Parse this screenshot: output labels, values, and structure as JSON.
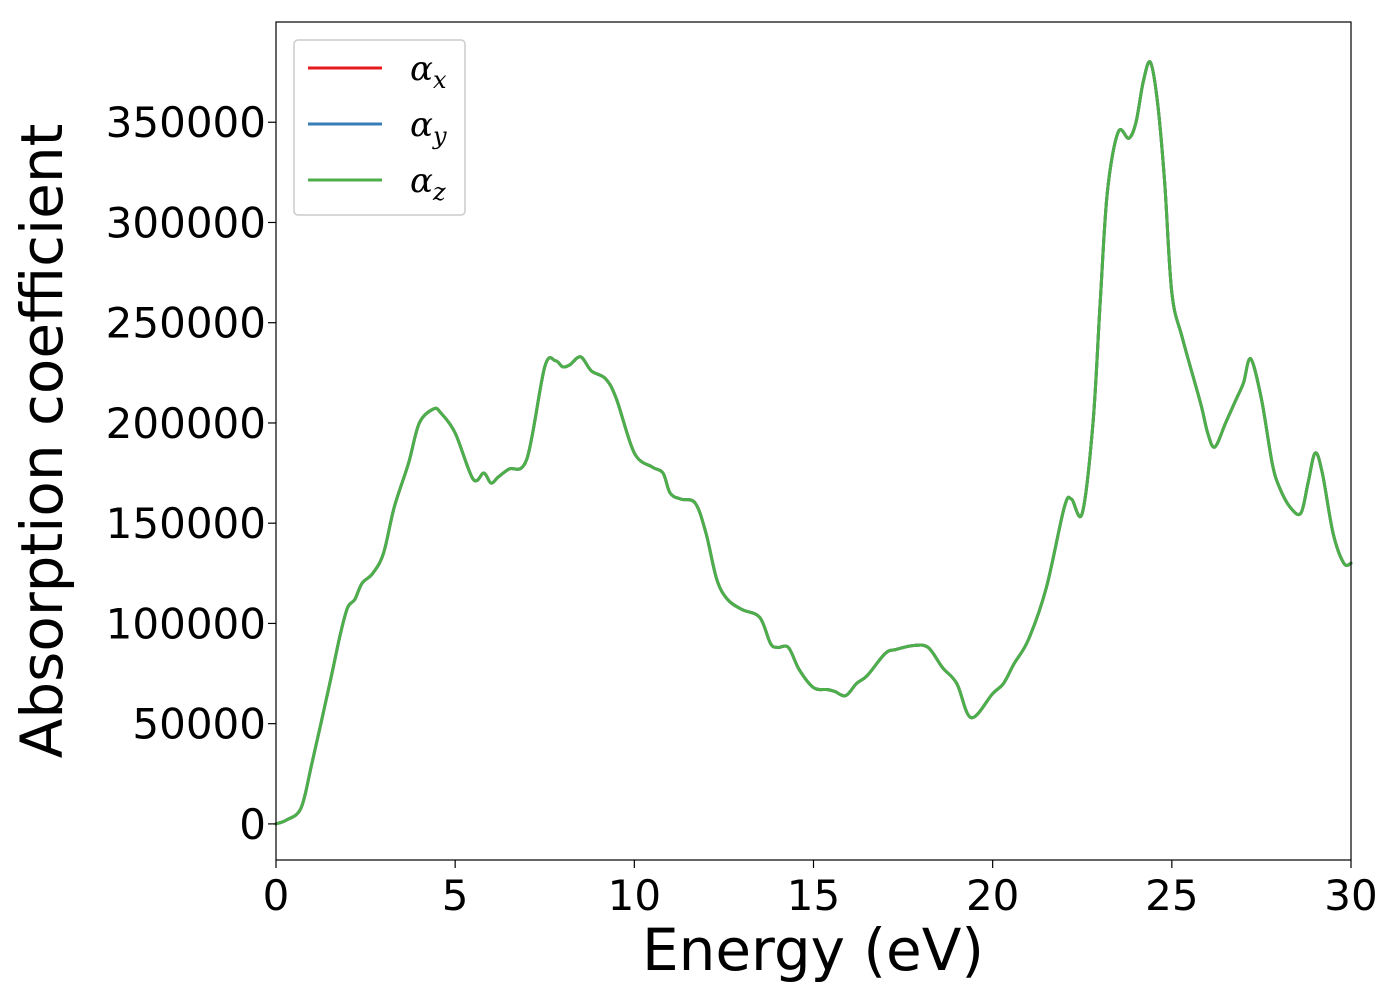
{
  "chart_data": {
    "type": "line",
    "title": "",
    "xlabel": "Energy (eV)",
    "ylabel": "Absorption coefficient",
    "xlim": [
      0,
      30
    ],
    "ylim": [
      -18000,
      400000
    ],
    "xticks": [
      0,
      5,
      10,
      15,
      20,
      25,
      30
    ],
    "xtick_labels": [
      "0",
      "5",
      "10",
      "15",
      "20",
      "25",
      "30"
    ],
    "yticks": [
      0,
      50000,
      100000,
      150000,
      200000,
      250000,
      300000,
      350000
    ],
    "ytick_labels": [
      "0",
      "50000",
      "100000",
      "150000",
      "200000",
      "250000",
      "300000",
      "350000"
    ],
    "grid": false,
    "legend_position": "upper-left",
    "x": [
      0,
      0.3,
      0.7,
      1.0,
      1.5,
      1.8,
      2.0,
      2.2,
      2.4,
      2.7,
      3.0,
      3.3,
      3.7,
      4.0,
      4.4,
      4.6,
      5.0,
      5.5,
      5.8,
      6.0,
      6.2,
      6.5,
      7.0,
      7.5,
      7.8,
      8.0,
      8.2,
      8.5,
      8.8,
      9.2,
      9.5,
      10.0,
      10.5,
      10.8,
      11.0,
      11.3,
      11.7,
      12.0,
      12.3,
      12.6,
      13.0,
      13.5,
      13.8,
      14.0,
      14.3,
      14.6,
      15.0,
      15.4,
      15.6,
      15.9,
      16.2,
      16.5,
      17.0,
      17.3,
      17.8,
      18.2,
      18.6,
      19.0,
      19.4,
      20.0,
      20.3,
      20.6,
      21.0,
      21.5,
      22.0,
      22.2,
      22.5,
      22.8,
      23.0,
      23.2,
      23.5,
      23.8,
      24.0,
      24.2,
      24.4,
      24.6,
      24.8,
      25.0,
      25.3,
      25.8,
      26.0,
      26.2,
      26.5,
      26.8,
      27.0,
      27.2,
      27.5,
      27.8,
      28.0,
      28.3,
      28.6,
      28.8,
      29.0,
      29.2,
      29.5,
      29.8,
      30.0
    ],
    "series": [
      {
        "name": "αx",
        "color": "#e41a1c",
        "values": [
          0,
          2000,
          8000,
          30000,
          70000,
          95000,
          108000,
          112000,
          120000,
          125000,
          135000,
          158000,
          180000,
          200000,
          207000,
          205000,
          195000,
          172000,
          175000,
          170000,
          173000,
          177000,
          182000,
          228000,
          231000,
          228000,
          229000,
          233000,
          226000,
          222000,
          212000,
          185000,
          178000,
          175000,
          165000,
          162000,
          160000,
          145000,
          122000,
          112000,
          107000,
          103000,
          90000,
          88000,
          88000,
          77000,
          68000,
          67000,
          66000,
          64000,
          70000,
          74000,
          85000,
          87000,
          89000,
          88000,
          78000,
          70000,
          53000,
          65000,
          70000,
          80000,
          92000,
          118000,
          158000,
          162000,
          155000,
          200000,
          260000,
          315000,
          345000,
          342000,
          350000,
          370000,
          380000,
          360000,
          320000,
          265000,
          242000,
          210000,
          195000,
          188000,
          200000,
          212000,
          220000,
          232000,
          212000,
          180000,
          168000,
          158000,
          155000,
          170000,
          185000,
          175000,
          145000,
          130000,
          130000
        ]
      },
      {
        "name": "αy",
        "color": "#377eb8",
        "values": [
          0,
          2000,
          8000,
          30000,
          70000,
          95000,
          108000,
          112000,
          120000,
          125000,
          135000,
          158000,
          180000,
          200000,
          207000,
          205000,
          195000,
          172000,
          175000,
          170000,
          173000,
          177000,
          182000,
          228000,
          231000,
          228000,
          229000,
          233000,
          226000,
          222000,
          212000,
          185000,
          178000,
          175000,
          165000,
          162000,
          160000,
          145000,
          122000,
          112000,
          107000,
          103000,
          90000,
          88000,
          88000,
          77000,
          68000,
          67000,
          66000,
          64000,
          70000,
          74000,
          85000,
          87000,
          89000,
          88000,
          78000,
          70000,
          53000,
          65000,
          70000,
          80000,
          92000,
          118000,
          158000,
          162000,
          155000,
          200000,
          260000,
          315000,
          345000,
          342000,
          350000,
          370000,
          380000,
          360000,
          320000,
          265000,
          242000,
          210000,
          195000,
          188000,
          200000,
          212000,
          220000,
          232000,
          212000,
          180000,
          168000,
          158000,
          155000,
          170000,
          185000,
          175000,
          145000,
          130000,
          130000
        ]
      },
      {
        "name": "αz",
        "color": "#4daf4a",
        "values": [
          0,
          2000,
          8000,
          30000,
          70000,
          95000,
          108000,
          112000,
          120000,
          125000,
          135000,
          158000,
          180000,
          200000,
          207000,
          205000,
          195000,
          172000,
          175000,
          170000,
          173000,
          177000,
          182000,
          228000,
          231000,
          228000,
          229000,
          233000,
          226000,
          222000,
          212000,
          185000,
          178000,
          175000,
          165000,
          162000,
          160000,
          145000,
          122000,
          112000,
          107000,
          103000,
          90000,
          88000,
          88000,
          77000,
          68000,
          67000,
          66000,
          64000,
          70000,
          74000,
          85000,
          87000,
          89000,
          88000,
          78000,
          70000,
          53000,
          65000,
          70000,
          80000,
          92000,
          118000,
          158000,
          162000,
          155000,
          200000,
          260000,
          315000,
          345000,
          342000,
          350000,
          370000,
          380000,
          360000,
          320000,
          265000,
          242000,
          210000,
          195000,
          188000,
          200000,
          212000,
          220000,
          232000,
          212000,
          180000,
          168000,
          158000,
          155000,
          170000,
          185000,
          175000,
          145000,
          130000,
          130000
        ]
      }
    ],
    "legend": [
      {
        "symbol": "α",
        "sub": "x",
        "color": "#e41a1c"
      },
      {
        "symbol": "α",
        "sub": "y",
        "color": "#377eb8"
      },
      {
        "symbol": "α",
        "sub": "z",
        "color": "#4daf4a"
      }
    ]
  }
}
